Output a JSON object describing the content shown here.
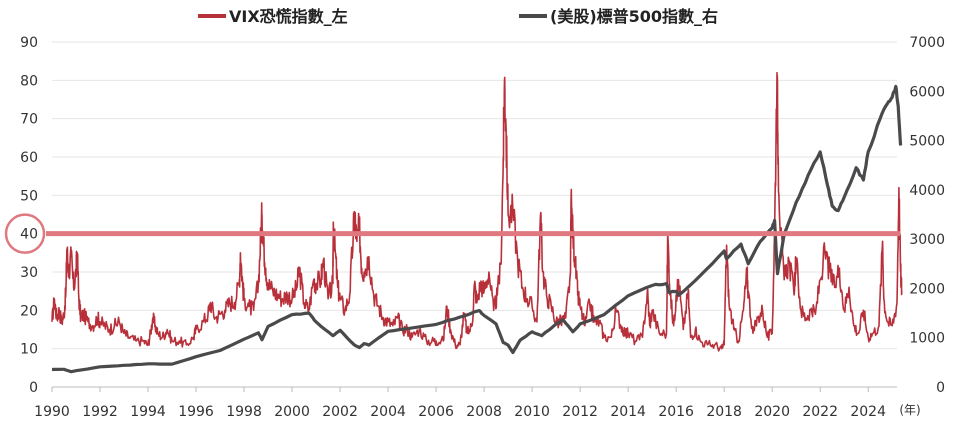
{
  "chart_data": {
    "type": "line",
    "title": "",
    "x_unit_label": "(年)",
    "xlim": [
      1990,
      2025.2
    ],
    "x_ticks": [
      "1990",
      "1992",
      "1994",
      "1996",
      "1998",
      "2000",
      "2002",
      "2004",
      "2006",
      "2008",
      "2010",
      "2012",
      "2014",
      "2016",
      "2018",
      "2020",
      "2022",
      "2024"
    ],
    "y_left": {
      "lim": [
        0,
        90
      ],
      "ticks": [
        "0",
        "10",
        "20",
        "30",
        "40",
        "50",
        "60",
        "70",
        "80",
        "90"
      ]
    },
    "y_right": {
      "lim": [
        0,
        7000
      ],
      "ticks": [
        "0",
        "1000",
        "2000",
        "3000",
        "4000",
        "5000",
        "6000",
        "7000"
      ]
    },
    "grid": "horizontal",
    "legend_position": "top",
    "series": [
      {
        "name": "VIX恐慌指數_左",
        "axis": "left",
        "color": "#b8303a",
        "points": [
          [
            1990.0,
            17
          ],
          [
            1990.1,
            23
          ],
          [
            1990.2,
            18
          ],
          [
            1990.3,
            20
          ],
          [
            1990.4,
            17
          ],
          [
            1990.5,
            19
          ],
          [
            1990.58,
            25
          ],
          [
            1990.62,
            36
          ],
          [
            1990.7,
            30
          ],
          [
            1990.8,
            34
          ],
          [
            1990.9,
            26
          ],
          [
            1991.0,
            30
          ],
          [
            1991.05,
            35
          ],
          [
            1991.12,
            23
          ],
          [
            1991.2,
            18
          ],
          [
            1991.3,
            19
          ],
          [
            1991.5,
            17
          ],
          [
            1991.7,
            16
          ],
          [
            1991.9,
            18
          ],
          [
            1992.0,
            17
          ],
          [
            1992.2,
            16
          ],
          [
            1992.4,
            15
          ],
          [
            1992.6,
            16
          ],
          [
            1992.8,
            17
          ],
          [
            1993.0,
            14
          ],
          [
            1993.2,
            13
          ],
          [
            1993.5,
            12
          ],
          [
            1993.8,
            12
          ],
          [
            1994.0,
            11
          ],
          [
            1994.1,
            14
          ],
          [
            1994.2,
            18
          ],
          [
            1994.3,
            16
          ],
          [
            1994.4,
            14
          ],
          [
            1994.6,
            13
          ],
          [
            1994.8,
            15
          ],
          [
            1995.0,
            12
          ],
          [
            1995.3,
            12
          ],
          [
            1995.6,
            11
          ],
          [
            1995.9,
            13
          ],
          [
            1996.0,
            15
          ],
          [
            1996.3,
            17
          ],
          [
            1996.5,
            19
          ],
          [
            1996.6,
            22
          ],
          [
            1996.8,
            18
          ],
          [
            1997.0,
            19
          ],
          [
            1997.2,
            20
          ],
          [
            1997.4,
            22
          ],
          [
            1997.6,
            22
          ],
          [
            1997.8,
            27
          ],
          [
            1997.85,
            35
          ],
          [
            1997.95,
            26
          ],
          [
            1998.0,
            23
          ],
          [
            1998.2,
            21
          ],
          [
            1998.4,
            20
          ],
          [
            1998.6,
            27
          ],
          [
            1998.7,
            40
          ],
          [
            1998.75,
            45
          ],
          [
            1998.8,
            38
          ],
          [
            1998.9,
            31
          ],
          [
            1999.0,
            27
          ],
          [
            1999.2,
            25
          ],
          [
            1999.4,
            24
          ],
          [
            1999.6,
            23
          ],
          [
            1999.8,
            24
          ],
          [
            2000.0,
            23
          ],
          [
            2000.2,
            26
          ],
          [
            2000.3,
            31
          ],
          [
            2000.5,
            22
          ],
          [
            2000.7,
            20
          ],
          [
            2000.9,
            28
          ],
          [
            2001.0,
            27
          ],
          [
            2001.2,
            28
          ],
          [
            2001.3,
            33
          ],
          [
            2001.5,
            23
          ],
          [
            2001.7,
            27
          ],
          [
            2001.72,
            43
          ],
          [
            2001.8,
            35
          ],
          [
            2001.9,
            26
          ],
          [
            2002.0,
            23
          ],
          [
            2002.2,
            20
          ],
          [
            2002.4,
            24
          ],
          [
            2002.55,
            40
          ],
          [
            2002.6,
            45
          ],
          [
            2002.7,
            38
          ],
          [
            2002.8,
            42
          ],
          [
            2002.9,
            31
          ],
          [
            2003.0,
            30
          ],
          [
            2003.2,
            34
          ],
          [
            2003.4,
            24
          ],
          [
            2003.6,
            21
          ],
          [
            2003.8,
            18
          ],
          [
            2004.0,
            17
          ],
          [
            2004.2,
            16
          ],
          [
            2004.4,
            18
          ],
          [
            2004.6,
            15
          ],
          [
            2004.8,
            15
          ],
          [
            2005.0,
            13
          ],
          [
            2005.3,
            15
          ],
          [
            2005.6,
            12
          ],
          [
            2005.9,
            12
          ],
          [
            2006.0,
            12
          ],
          [
            2006.3,
            12
          ],
          [
            2006.45,
            21
          ],
          [
            2006.6,
            15
          ],
          [
            2006.8,
            11
          ],
          [
            2007.0,
            11
          ],
          [
            2007.16,
            19
          ],
          [
            2007.3,
            14
          ],
          [
            2007.5,
            16
          ],
          [
            2007.6,
            27
          ],
          [
            2007.7,
            22
          ],
          [
            2007.85,
            27
          ],
          [
            2008.0,
            25
          ],
          [
            2008.2,
            30
          ],
          [
            2008.4,
            20
          ],
          [
            2008.55,
            24
          ],
          [
            2008.7,
            32
          ],
          [
            2008.8,
            60
          ],
          [
            2008.85,
            80
          ],
          [
            2008.9,
            70
          ],
          [
            2009.0,
            45
          ],
          [
            2009.2,
            46
          ],
          [
            2009.4,
            33
          ],
          [
            2009.6,
            26
          ],
          [
            2009.8,
            23
          ],
          [
            2010.0,
            21
          ],
          [
            2010.2,
            17
          ],
          [
            2010.35,
            45
          ],
          [
            2010.45,
            30
          ],
          [
            2010.6,
            24
          ],
          [
            2010.8,
            21
          ],
          [
            2011.0,
            17
          ],
          [
            2011.2,
            17
          ],
          [
            2011.4,
            18
          ],
          [
            2011.6,
            30
          ],
          [
            2011.62,
            48
          ],
          [
            2011.7,
            40
          ],
          [
            2011.8,
            32
          ],
          [
            2011.9,
            24
          ],
          [
            2012.0,
            21
          ],
          [
            2012.2,
            16
          ],
          [
            2012.4,
            22
          ],
          [
            2012.6,
            17
          ],
          [
            2012.8,
            17
          ],
          [
            2013.0,
            13
          ],
          [
            2013.3,
            13
          ],
          [
            2013.5,
            20
          ],
          [
            2013.7,
            16
          ],
          [
            2013.9,
            14
          ],
          [
            2014.0,
            14
          ],
          [
            2014.3,
            12
          ],
          [
            2014.6,
            13
          ],
          [
            2014.8,
            25
          ],
          [
            2014.9,
            16
          ],
          [
            2015.0,
            20
          ],
          [
            2015.3,
            14
          ],
          [
            2015.6,
            14
          ],
          [
            2015.65,
            40
          ],
          [
            2015.75,
            24
          ],
          [
            2015.9,
            16
          ],
          [
            2016.0,
            24
          ],
          [
            2016.1,
            28
          ],
          [
            2016.3,
            15
          ],
          [
            2016.5,
            25
          ],
          [
            2016.6,
            13
          ],
          [
            2016.8,
            15
          ],
          [
            2017.0,
            12
          ],
          [
            2017.3,
            11
          ],
          [
            2017.6,
            11
          ],
          [
            2017.9,
            10
          ],
          [
            2018.0,
            11
          ],
          [
            2018.1,
            37
          ],
          [
            2018.2,
            22
          ],
          [
            2018.4,
            15
          ],
          [
            2018.6,
            12
          ],
          [
            2018.8,
            20
          ],
          [
            2018.95,
            30
          ],
          [
            2019.0,
            25
          ],
          [
            2019.2,
            14
          ],
          [
            2019.4,
            18
          ],
          [
            2019.6,
            20
          ],
          [
            2019.8,
            13
          ],
          [
            2020.0,
            14
          ],
          [
            2020.1,
            40
          ],
          [
            2020.2,
            82
          ],
          [
            2020.25,
            60
          ],
          [
            2020.35,
            40
          ],
          [
            2020.5,
            28
          ],
          [
            2020.7,
            33
          ],
          [
            2020.9,
            25
          ],
          [
            2021.0,
            33
          ],
          [
            2021.2,
            20
          ],
          [
            2021.4,
            18
          ],
          [
            2021.6,
            20
          ],
          [
            2021.8,
            19
          ],
          [
            2022.0,
            28
          ],
          [
            2022.2,
            35
          ],
          [
            2022.4,
            30
          ],
          [
            2022.6,
            26
          ],
          [
            2022.8,
            31
          ],
          [
            2023.0,
            20
          ],
          [
            2023.2,
            26
          ],
          [
            2023.4,
            16
          ],
          [
            2023.6,
            14
          ],
          [
            2023.8,
            20
          ],
          [
            2024.0,
            13
          ],
          [
            2024.2,
            14
          ],
          [
            2024.45,
            16
          ],
          [
            2024.6,
            38
          ],
          [
            2024.65,
            23
          ],
          [
            2024.8,
            17
          ],
          [
            2025.0,
            16
          ],
          [
            2025.2,
            22
          ],
          [
            2025.28,
            52
          ],
          [
            2025.35,
            30
          ],
          [
            2025.4,
            25
          ]
        ]
      },
      {
        "name": "(美股)標普500指數_右",
        "axis": "right",
        "color": "#4a4a4c",
        "points": [
          [
            1990.0,
            355
          ],
          [
            1990.5,
            360
          ],
          [
            1990.8,
            310
          ],
          [
            1991.0,
            330
          ],
          [
            1992.0,
            410
          ],
          [
            1993.0,
            440
          ],
          [
            1994.0,
            470
          ],
          [
            1995.0,
            465
          ],
          [
            1996.0,
            615
          ],
          [
            1997.0,
            740
          ],
          [
            1998.0,
            970
          ],
          [
            1998.6,
            1100
          ],
          [
            1998.75,
            960
          ],
          [
            1999.0,
            1230
          ],
          [
            2000.0,
            1470
          ],
          [
            2000.7,
            1500
          ],
          [
            2001.0,
            1320
          ],
          [
            2001.7,
            1040
          ],
          [
            2002.0,
            1150
          ],
          [
            2002.6,
            850
          ],
          [
            2002.8,
            800
          ],
          [
            2003.0,
            880
          ],
          [
            2003.2,
            850
          ],
          [
            2004.0,
            1130
          ],
          [
            2005.0,
            1200
          ],
          [
            2006.0,
            1270
          ],
          [
            2007.0,
            1420
          ],
          [
            2007.8,
            1550
          ],
          [
            2008.0,
            1450
          ],
          [
            2008.5,
            1280
          ],
          [
            2008.8,
            900
          ],
          [
            2009.0,
            850
          ],
          [
            2009.2,
            700
          ],
          [
            2009.5,
            950
          ],
          [
            2010.0,
            1120
          ],
          [
            2010.4,
            1040
          ],
          [
            2011.0,
            1280
          ],
          [
            2011.3,
            1360
          ],
          [
            2011.7,
            1120
          ],
          [
            2012.0,
            1280
          ],
          [
            2013.0,
            1470
          ],
          [
            2014.0,
            1850
          ],
          [
            2015.0,
            2060
          ],
          [
            2015.6,
            2100
          ],
          [
            2015.7,
            1920
          ],
          [
            2016.0,
            1940
          ],
          [
            2016.1,
            1860
          ],
          [
            2017.0,
            2260
          ],
          [
            2018.0,
            2760
          ],
          [
            2018.1,
            2600
          ],
          [
            2018.7,
            2900
          ],
          [
            2019.0,
            2500
          ],
          [
            2019.5,
            2950
          ],
          [
            2020.0,
            3230
          ],
          [
            2020.1,
            3380
          ],
          [
            2020.22,
            2300
          ],
          [
            2020.5,
            3100
          ],
          [
            2021.0,
            3750
          ],
          [
            2021.5,
            4300
          ],
          [
            2022.0,
            4770
          ],
          [
            2022.3,
            4100
          ],
          [
            2022.5,
            3670
          ],
          [
            2022.75,
            3580
          ],
          [
            2023.0,
            3850
          ],
          [
            2023.5,
            4450
          ],
          [
            2023.8,
            4200
          ],
          [
            2024.0,
            4770
          ],
          [
            2024.5,
            5450
          ],
          [
            2024.8,
            5750
          ],
          [
            2025.0,
            5880
          ],
          [
            2025.15,
            6100
          ],
          [
            2025.25,
            5700
          ],
          [
            2025.35,
            4900
          ]
        ]
      }
    ],
    "highlight": {
      "type": "horizontal-line",
      "axis": "left",
      "value": 40,
      "color": "#e07880"
    }
  }
}
